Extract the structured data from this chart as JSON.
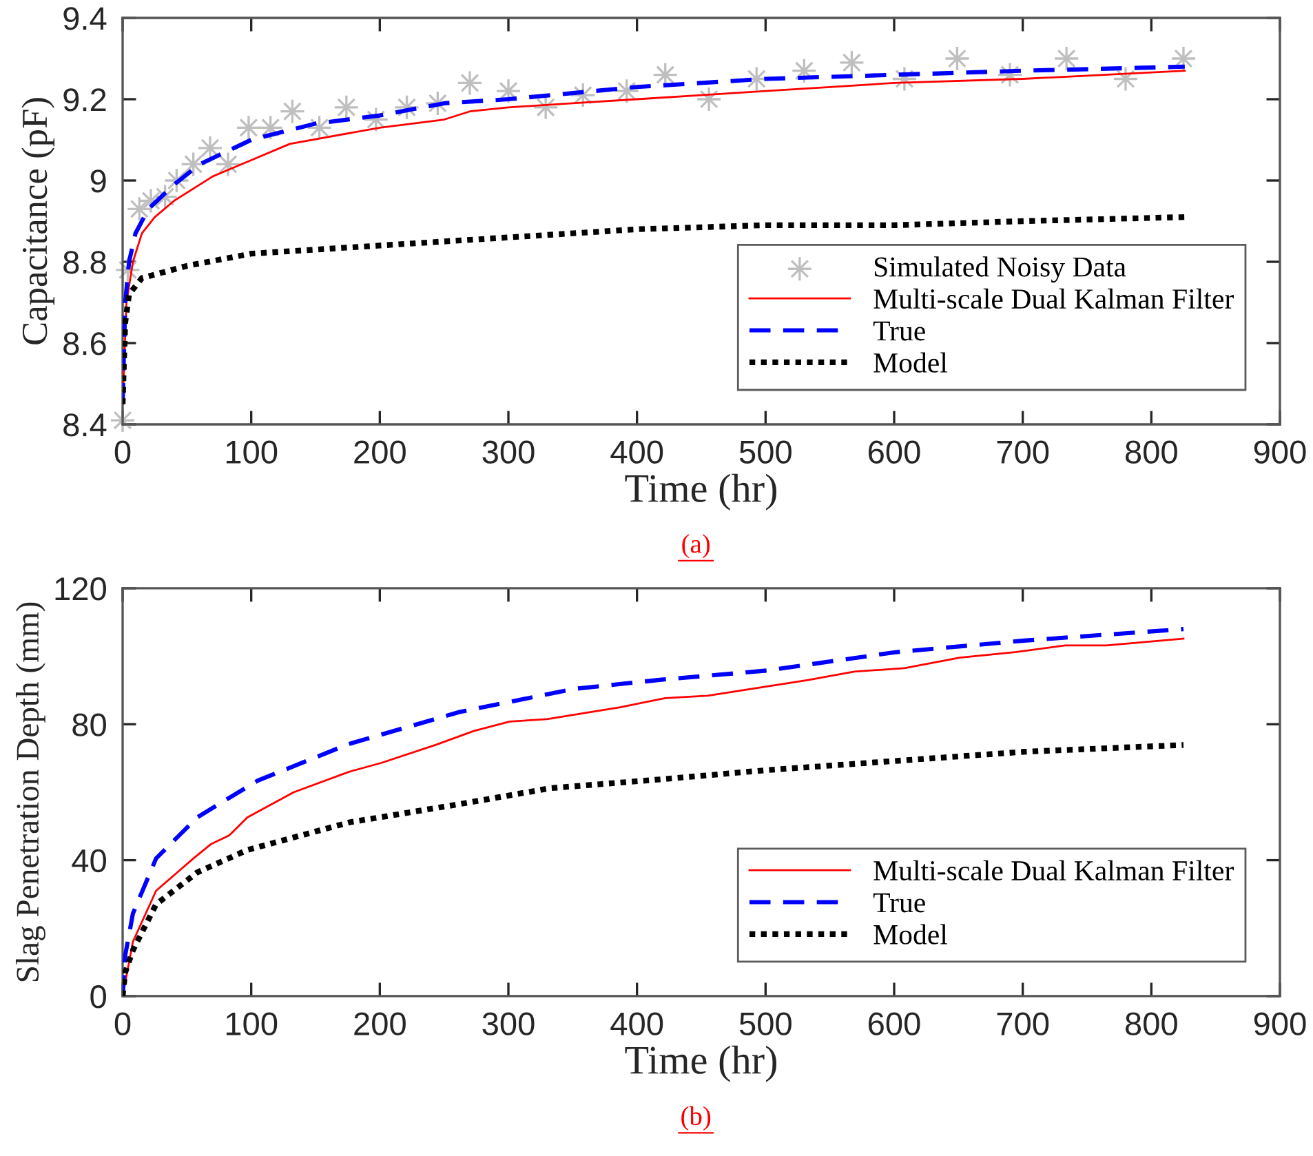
{
  "chart_data": [
    {
      "type": "line",
      "xlabel": "Time (hr)",
      "ylabel": "Capacitance (pF)",
      "xlim": [
        0,
        900
      ],
      "ylim": [
        8.4,
        9.4
      ],
      "xticks": [
        0,
        100,
        200,
        300,
        400,
        500,
        600,
        700,
        800,
        900
      ],
      "yticks": [
        8.4,
        8.6,
        8.8,
        9,
        9.2,
        9.4
      ],
      "grid": false,
      "legend": "bottom right",
      "annotations": [
        "(a)"
      ],
      "series": [
        {
          "name": "Simulated Noisy Data",
          "type": "scatter",
          "marker": "cross",
          "color": "#bfbfbf",
          "x": [
            0,
            4,
            13,
            22,
            33,
            42,
            55,
            68,
            82,
            98,
            115,
            132,
            153,
            174,
            197,
            221,
            245,
            270,
            300,
            329,
            358,
            392,
            422,
            456,
            493,
            530,
            567,
            608,
            649,
            690,
            734,
            780,
            825
          ],
          "values": [
            8.41,
            8.78,
            8.93,
            8.95,
            8.96,
            9.0,
            9.04,
            9.08,
            9.04,
            9.13,
            9.13,
            9.17,
            9.13,
            9.18,
            9.15,
            9.18,
            9.19,
            9.24,
            9.22,
            9.18,
            9.21,
            9.22,
            9.26,
            9.2,
            9.25,
            9.27,
            9.29,
            9.25,
            9.3,
            9.26,
            9.3,
            9.25,
            9.3
          ]
        },
        {
          "name": "Multi-scale Dual Kalman Filter",
          "type": "line",
          "line_style": "solid",
          "color": "#ff0000",
          "x": [
            0,
            3,
            8,
            15,
            25,
            40,
            70,
            100,
            130,
            200,
            250,
            270,
            300,
            350,
            400,
            450,
            500,
            550,
            600,
            700,
            826
          ],
          "values": [
            8.45,
            8.7,
            8.8,
            8.87,
            8.91,
            8.95,
            9.01,
            9.05,
            9.09,
            9.13,
            9.15,
            9.17,
            9.18,
            9.19,
            9.2,
            9.21,
            9.22,
            9.23,
            9.24,
            9.25,
            9.27
          ]
        },
        {
          "name": "True",
          "type": "line",
          "line_style": "dashed",
          "color": "#0000ff",
          "x": [
            0,
            2,
            5,
            10,
            20,
            40,
            60,
            80,
            100,
            150,
            200,
            250,
            300,
            400,
            500,
            600,
            700,
            826
          ],
          "values": [
            8.45,
            8.7,
            8.8,
            8.87,
            8.93,
            8.99,
            9.04,
            9.07,
            9.1,
            9.14,
            9.16,
            9.19,
            9.2,
            9.23,
            9.25,
            9.26,
            9.27,
            9.28
          ]
        },
        {
          "name": "Model",
          "type": "line",
          "line_style": "dotted",
          "color": "#000000",
          "x": [
            0,
            2,
            5,
            15,
            50,
            100,
            200,
            300,
            400,
            500,
            600,
            700,
            826
          ],
          "values": [
            8.45,
            8.65,
            8.72,
            8.76,
            8.79,
            8.82,
            8.84,
            8.86,
            8.88,
            8.89,
            8.89,
            8.9,
            8.91
          ]
        }
      ]
    },
    {
      "type": "line",
      "xlabel": "Time (hr)",
      "ylabel": "Slag Penetration Depth (mm)",
      "xlim": [
        0,
        900
      ],
      "ylim": [
        0,
        120
      ],
      "xticks": [
        0,
        100,
        200,
        300,
        400,
        500,
        600,
        700,
        800,
        900
      ],
      "yticks": [
        0,
        40,
        80,
        120
      ],
      "grid": false,
      "legend": "bottom right",
      "annotations": [
        "(b)"
      ],
      "series": [
        {
          "name": "Multi-scale Dual Kalman Filter",
          "type": "line",
          "line_style": "solid",
          "color": "#ff0000",
          "x": [
            0,
            8,
            26,
            55,
            69,
            83,
            97,
            133,
            176,
            201,
            244,
            273,
            301,
            330,
            387,
            422,
            455,
            533,
            569,
            608,
            651,
            694,
            733,
            765,
            825
          ],
          "values": [
            0,
            16,
            31,
            40.5,
            44.8,
            47.3,
            52.6,
            60,
            66,
            68.6,
            74,
            78,
            80.8,
            81.5,
            85,
            87.7,
            88.4,
            93,
            95.5,
            96.5,
            99.6,
            101.2,
            103.2,
            103.2,
            105.2
          ]
        },
        {
          "name": "True",
          "type": "line",
          "line_style": "dashed",
          "color": "#0000ff",
          "x": [
            0,
            2,
            8,
            26,
            58,
            105,
            176,
            262,
            351,
            419,
            501,
            601,
            701,
            825
          ],
          "values": [
            0,
            12,
            24.3,
            40.5,
            52.6,
            63.4,
            74.2,
            83.6,
            90.4,
            93.1,
            95.8,
            101.2,
            104.6,
            108
          ]
        },
        {
          "name": "Model",
          "type": "line",
          "line_style": "dotted",
          "color": "#000000",
          "x": [
            0,
            2,
            8,
            26,
            58,
            97,
            176,
            262,
            333,
            419,
            501,
            601,
            701,
            825
          ],
          "values": [
            0,
            7,
            13.5,
            27,
            36.4,
            43,
            51.1,
            56.5,
            61.2,
            63.8,
            66.5,
            69.2,
            71.9,
            73.9
          ]
        }
      ]
    }
  ]
}
